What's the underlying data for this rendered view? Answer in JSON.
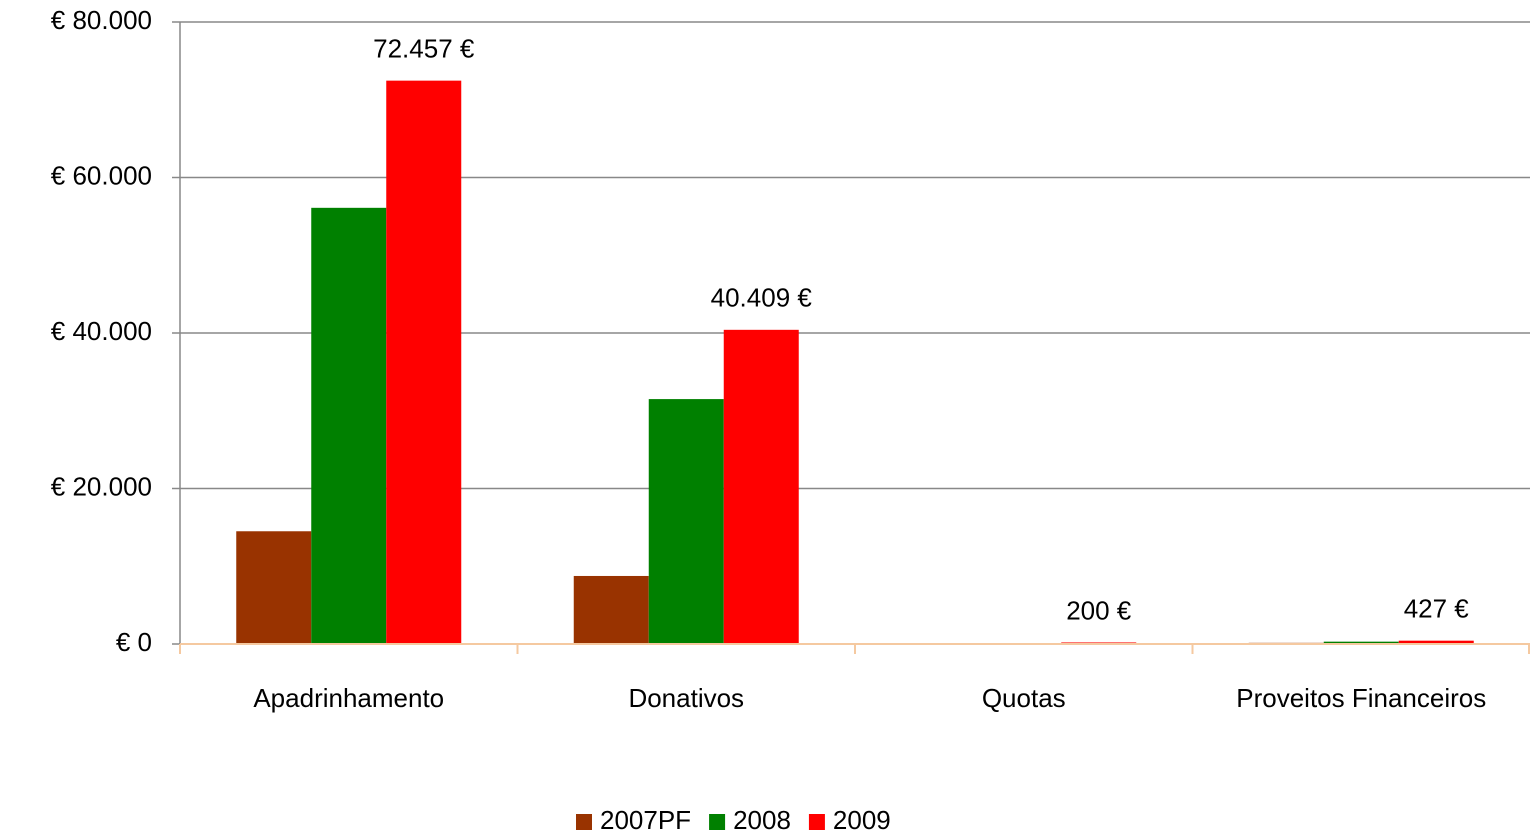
{
  "chart_data": {
    "type": "bar",
    "categories": [
      "Apadrinhamento",
      "Donativos",
      "Quotas",
      "Proveitos Financeiros"
    ],
    "series": [
      {
        "name": "2007PF",
        "color": "#993300",
        "values": [
          14500,
          8750,
          100,
          150
        ]
      },
      {
        "name": "2008",
        "color": "#008000",
        "values": [
          56100,
          31500,
          100,
          300
        ]
      },
      {
        "name": "2009",
        "color": "#ff0000",
        "values": [
          72457,
          40409,
          200,
          427
        ],
        "value_labels": [
          "72.457 €",
          "40.409 €",
          "200 €",
          "427 €"
        ]
      }
    ],
    "ylim": [
      0,
      80000
    ],
    "yticks": [
      {
        "value": 0,
        "label": "€ 0"
      },
      {
        "value": 20000,
        "label": "€ 20.000"
      },
      {
        "value": 40000,
        "label": "€ 40.000"
      },
      {
        "value": 60000,
        "label": "€ 60.000"
      },
      {
        "value": 80000,
        "label": "€ 80.000"
      }
    ],
    "grid": true,
    "legend": "bottom"
  }
}
